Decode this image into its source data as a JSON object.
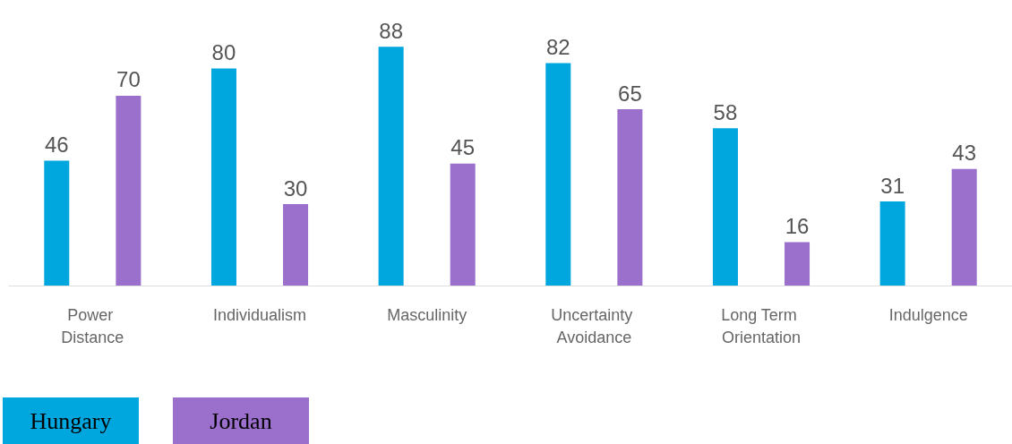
{
  "chart_data": {
    "type": "bar",
    "categories": [
      "Power Distance",
      "Individualism",
      "Masculinity",
      "Uncertainty Avoidance",
      "Long Term Orientation",
      "Indulgence"
    ],
    "series": [
      {
        "name": "Hungary",
        "color": "#00a6de",
        "values": [
          46,
          80,
          88,
          82,
          58,
          31
        ]
      },
      {
        "name": "Jordan",
        "color": "#9b70cc",
        "values": [
          70,
          30,
          45,
          65,
          16,
          43
        ]
      }
    ],
    "data_labels": true,
    "grid": false,
    "legend": "bottom left"
  }
}
